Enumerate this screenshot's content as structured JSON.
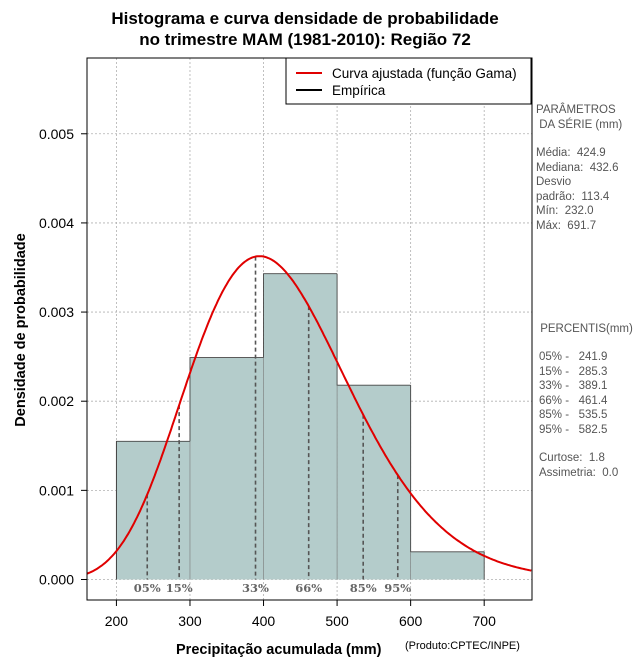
{
  "title_line1": "Histograma e curva densidade de probabilidade",
  "title_line2": "no trimestre MAM (1981-2010): Região 72",
  "credit": "(Produto:CPTEC/INPE)",
  "colors": {
    "bars": "#b4cccb",
    "curve": "#e00000",
    "empirical": "#000000",
    "grid": "#b0b0b0",
    "percentile": "#555555"
  },
  "chart_data": {
    "type": "bar",
    "xlabel": "Precipitação acumulada (mm)",
    "ylabel": "Densidade de probabilidade",
    "xlim": [
      160,
      765
    ],
    "ylim": [
      -0.00023,
      0.00585
    ],
    "xticks": [
      200,
      300,
      400,
      500,
      600,
      700
    ],
    "yticks": [
      0.0,
      0.001,
      0.002,
      0.003,
      0.004,
      0.005
    ],
    "ytick_labels": [
      "0.000",
      "0.001",
      "0.002",
      "0.003",
      "0.004",
      "0.005"
    ],
    "bins": [
      {
        "x0": 200,
        "x1": 300,
        "density": 0.00155
      },
      {
        "x0": 300,
        "x1": 400,
        "density": 0.00249
      },
      {
        "x0": 400,
        "x1": 500,
        "density": 0.00343
      },
      {
        "x0": 500,
        "x1": 600,
        "density": 0.00218
      },
      {
        "x0": 600,
        "x1": 700,
        "density": 0.00031
      }
    ],
    "gamma_fit": {
      "mean": 424.9,
      "sd": 113.4
    },
    "legend": {
      "position": "top-right",
      "entries": [
        "Curva ajustada (função Gama)",
        "Empírica"
      ]
    },
    "percentile_markers": [
      {
        "label": "05%",
        "value": 241.9
      },
      {
        "label": "15%",
        "value": 285.3
      },
      {
        "label": "33%",
        "value": 389.1
      },
      {
        "label": "66%",
        "value": 461.4
      },
      {
        "label": "85%",
        "value": 535.5
      },
      {
        "label": "95%",
        "value": 582.5
      }
    ]
  },
  "parameters_panel": {
    "heading1": "PARÂMETROS",
    "heading2": " DA SÉRIE (mm)",
    "lines": [
      "Média:  424.9",
      "Mediana:  432.6",
      "Desvio",
      "padrão:  113.4",
      "Mín:  232.0",
      "Máx:  691.7"
    ]
  },
  "percentiles_panel": {
    "heading": " PERCENTIS(mm)",
    "lines": [
      "05% -   241.9",
      "15% -   285.3",
      "33% -   389.1",
      "66% -   461.4",
      "85% -   535.5",
      "95% -   582.5"
    ],
    "stats": [
      "Curtose:  1.8",
      "Assimetria:  0.0"
    ]
  }
}
